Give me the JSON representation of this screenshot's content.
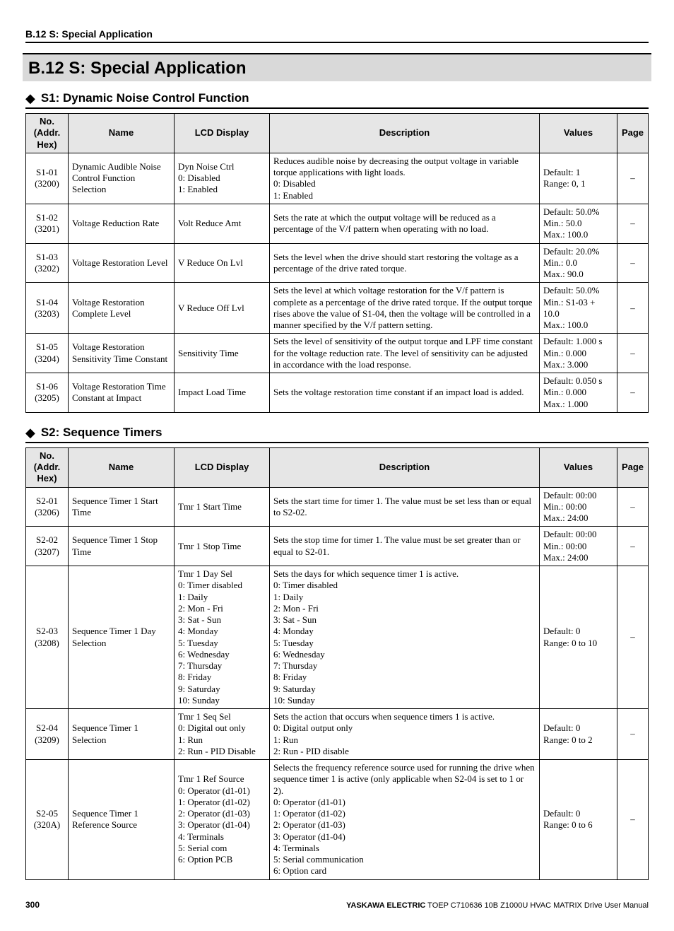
{
  "page": {
    "running_head": "B.12 S: Special Application",
    "section_title": "B.12 S: Special Application",
    "page_number": "300",
    "footer_brand": "YASKAWA ELECTRIC",
    "footer_doc": " TOEP C710636 10B Z1000U HVAC MATRIX Drive User Manual"
  },
  "subsections": [
    {
      "title": "S1: Dynamic Noise Control Function",
      "rows": [
        {
          "no": "S1-01\n(3200)",
          "name": "Dynamic Audible Noise Control Function Selection",
          "lcd": "Dyn Noise Ctrl\n0: Disabled\n1: Enabled",
          "desc": "Reduces audible noise by decreasing the output voltage in variable torque applications with light loads.\n0: Disabled\n1: Enabled",
          "values": "Default: 1\nRange: 0, 1",
          "page": "–"
        },
        {
          "no": "S1-02\n(3201)",
          "name": "Voltage Reduction Rate",
          "lcd": "Volt Reduce Amt",
          "desc": "Sets the rate at which the output voltage will be reduced as a percentage of the V/f pattern when operating with no load.",
          "values": "Default: 50.0%\nMin.: 50.0\nMax.: 100.0",
          "page": "–"
        },
        {
          "no": "S1-03\n(3202)",
          "name": "Voltage Restoration Level",
          "lcd": "V Reduce On Lvl",
          "desc": "Sets the level when the drive should start restoring the voltage as a percentage of the drive rated torque.",
          "values": "Default: 20.0%\nMin.: 0.0\nMax.: 90.0",
          "page": "–"
        },
        {
          "no": "S1-04\n(3203)",
          "name": "Voltage Restoration Complete Level",
          "lcd": "V Reduce Off Lvl",
          "desc": "Sets the level at which voltage restoration for the V/f pattern is complete as a percentage of the drive rated torque. If the output torque rises above the value of S1-04, then the voltage will be controlled in a manner specified by the V/f pattern setting.",
          "values": "Default: 50.0%\nMin.: S1-03 + 10.0\nMax.: 100.0",
          "page": "–"
        },
        {
          "no": "S1-05\n(3204)",
          "name": "Voltage Restoration Sensitivity Time Constant",
          "lcd": "Sensitivity Time",
          "desc": "Sets the level of sensitivity of the output torque and LPF time constant for the voltage reduction rate. The level of sensitivity can be adjusted in accordance with the load response.",
          "values": "Default: 1.000 s\nMin.: 0.000\nMax.: 3.000",
          "page": "–"
        },
        {
          "no": "S1-06\n(3205)",
          "name": "Voltage Restoration Time Constant at Impact",
          "lcd": "Impact Load Time",
          "desc": "Sets the voltage restoration time constant if an impact load is added.",
          "values": "Default: 0.050 s\nMin.: 0.000\nMax.: 1.000",
          "page": "–"
        }
      ]
    },
    {
      "title": "S2: Sequence Timers",
      "rows": [
        {
          "no": "S2-01\n(3206)",
          "name": "Sequence Timer 1 Start Time",
          "lcd": "Tmr 1 Start Time",
          "desc": "Sets the start time for timer 1. The value must be set less than or equal to S2-02.",
          "values": "Default: 00:00\nMin.: 00:00\nMax.: 24:00",
          "page": "–"
        },
        {
          "no": "S2-02\n(3207)",
          "name": "Sequence Timer 1 Stop Time",
          "lcd": "Tmr 1 Stop Time",
          "desc": "Sets the stop time for timer 1. The value must be set greater than or equal to S2-01.",
          "values": "Default: 00:00\nMin.: 00:00\nMax.: 24:00",
          "page": "–"
        },
        {
          "no": "S2-03\n(3208)",
          "name": "Sequence Timer 1 Day Selection",
          "lcd": "Tmr 1 Day Sel\n0: Timer disabled\n1: Daily\n2: Mon - Fri\n3: Sat - Sun\n4: Monday\n5: Tuesday\n6: Wednesday\n7: Thursday\n8: Friday\n9: Saturday\n10: Sunday",
          "desc": "Sets the days for which sequence timer 1 is active.\n0: Timer disabled\n1: Daily\n2: Mon - Fri\n3: Sat - Sun\n4: Monday\n5: Tuesday\n6: Wednesday\n7: Thursday\n8: Friday\n9: Saturday\n10: Sunday",
          "values": "Default: 0\nRange: 0 to 10",
          "page": "–"
        },
        {
          "no": "S2-04\n(3209)",
          "name": "Sequence Timer 1 Selection",
          "lcd": "Tmr 1 Seq Sel\n0: Digital out only\n1: Run\n2: Run - PID Disable",
          "desc": "Sets the action that occurs when sequence timers 1 is active.\n0: Digital output only\n1: Run\n2: Run - PID disable",
          "values": "Default: 0\nRange: 0 to 2",
          "page": "–"
        },
        {
          "no": "S2-05\n(320A)",
          "name": "Sequence Timer 1 Reference Source",
          "lcd": "Tmr 1 Ref Source\n0: Operator (d1-01)\n1: Operator (d1-02)\n2: Operator (d1-03)\n3: Operator (d1-04)\n4: Terminals\n5: Serial com\n6: Option PCB",
          "desc": "Selects the frequency reference source used for running the drive when sequence timer 1 is active (only applicable when S2-04 is set to 1 or 2).\n0: Operator (d1-01)\n1: Operator (d1-02)\n2: Operator (d1-03)\n3: Operator (d1-04)\n4: Terminals\n5: Serial communication\n6: Option card",
          "values": "Default: 0\nRange: 0 to 6",
          "page": "–"
        }
      ]
    }
  ],
  "headers": {
    "no": "No.\n(Addr.\nHex)",
    "name": "Name",
    "lcd": "LCD Display",
    "desc": "Description",
    "values": "Values",
    "page": "Page"
  }
}
